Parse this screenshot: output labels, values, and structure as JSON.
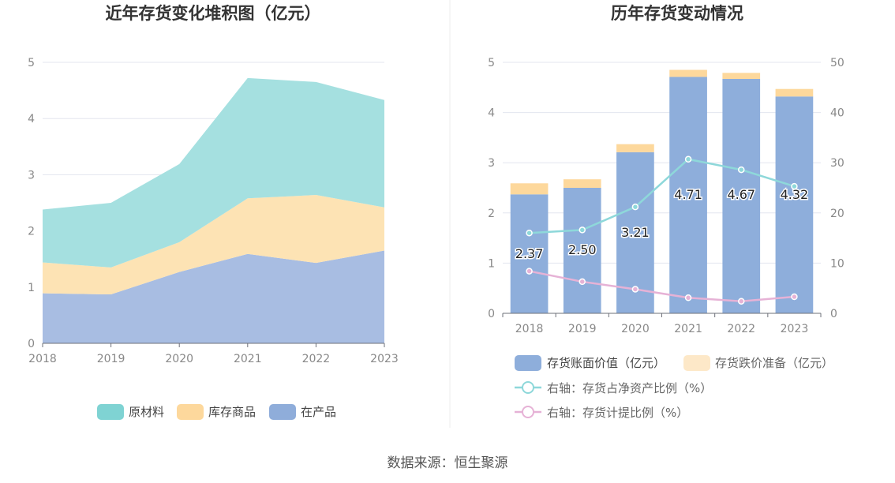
{
  "source_text": "数据来源：恒生聚源",
  "chart_data": [
    {
      "type": "area",
      "title": "近年存货变化堆积图（亿元）",
      "x": [
        "2018",
        "2019",
        "2020",
        "2021",
        "2022",
        "2023"
      ],
      "ylim": [
        0,
        5
      ],
      "yticks": [
        "0",
        "1",
        "2",
        "3",
        "4",
        "5"
      ],
      "stacked": true,
      "grid": true,
      "legend_position": "bottom",
      "series": [
        {
          "name": "在产品",
          "color": "#a8bde2",
          "legend_color": "#8fadda",
          "values": [
            0.89,
            0.87,
            1.27,
            1.59,
            1.43,
            1.65
          ]
        },
        {
          "name": "库存商品",
          "color": "#fde3b4",
          "legend_color": "#fdd89c",
          "values": [
            0.55,
            0.48,
            0.53,
            0.99,
            1.21,
            0.77
          ]
        },
        {
          "name": "原材料",
          "color": "#a5e0e0",
          "legend_color": "#7fd3d3",
          "values": [
            0.94,
            1.15,
            1.39,
            2.14,
            2.01,
            1.91
          ]
        }
      ],
      "legend_order": [
        "原材料",
        "库存商品",
        "在产品"
      ]
    },
    {
      "type": "bar",
      "title": "历年存货变动情况",
      "categories": [
        "2018",
        "2019",
        "2020",
        "2021",
        "2022",
        "2023"
      ],
      "ylim": [
        0,
        5
      ],
      "yticks": [
        "0",
        "1",
        "2",
        "3",
        "4",
        "5"
      ],
      "y2lim": [
        0,
        50
      ],
      "y2ticks": [
        "0",
        "10",
        "20",
        "30",
        "40",
        "50"
      ],
      "grid": true,
      "legend_position": "bottom",
      "bars_stacked": true,
      "series": [
        {
          "name": "存货账面价值（亿元）",
          "kind": "bar",
          "color": "#8eaedb",
          "values": [
            2.37,
            2.5,
            3.21,
            4.71,
            4.67,
            4.32
          ],
          "labels": [
            "2.37",
            "2.50",
            "3.21",
            "4.71",
            "4.67",
            "4.32"
          ]
        },
        {
          "name": "存货跌价准备（亿元）",
          "kind": "bar",
          "color": "#fdd89c",
          "legend_color": "#fde8c8",
          "values": [
            0.22,
            0.17,
            0.16,
            0.14,
            0.12,
            0.15
          ]
        },
        {
          "name": "右轴：存货占净资产比例（%）",
          "kind": "line",
          "axis": "right",
          "color": "#8ed8da",
          "values": [
            16.0,
            16.6,
            21.2,
            30.7,
            28.6,
            25.3
          ]
        },
        {
          "name": "右轴：存货计提比例（%）",
          "kind": "line",
          "axis": "right",
          "color": "#e6b2d6",
          "values": [
            8.4,
            6.3,
            4.8,
            3.1,
            2.4,
            3.3
          ]
        }
      ]
    }
  ]
}
